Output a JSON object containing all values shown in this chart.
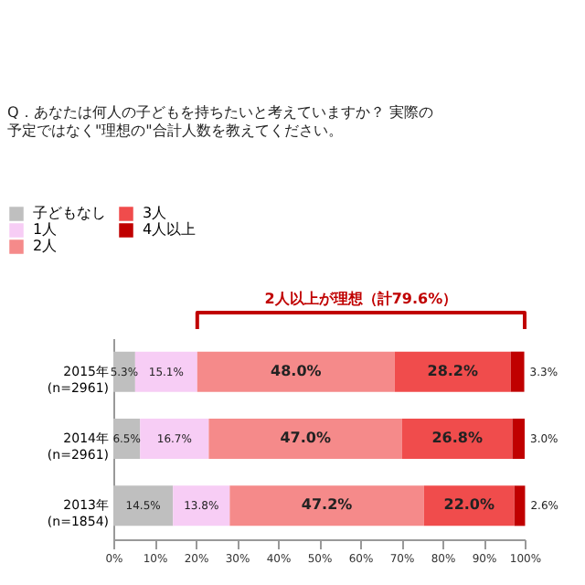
{
  "chart_data": {
    "type": "bar",
    "orientation": "horizontal",
    "stacked": true,
    "title": "Q．あなたは何人の子どもを持ちたいと考えていますか？ 実際の予定ではなく\"理想の\"合計人数を教えてください。",
    "categories": [
      "2015年\n(n=2961)",
      "2014年\n(n=2961)",
      "2013年\n(n=1854)"
    ],
    "series": [
      {
        "name": "子どもなし",
        "color": "#bfbfbf",
        "values": [
          5.3,
          6.5,
          14.5
        ],
        "value_labels": [
          "5.3%",
          "6.5%",
          "14.5%"
        ]
      },
      {
        "name": "1人",
        "color": "#f7cdf5",
        "values": [
          15.1,
          16.7,
          13.8
        ],
        "value_labels": [
          "15.1%",
          "16.7%",
          "13.8%"
        ]
      },
      {
        "name": "2人",
        "color": "#f58a8a",
        "values": [
          48.0,
          47.0,
          47.2
        ],
        "value_labels": [
          "48.0%",
          "47.0%",
          "47.2%"
        ]
      },
      {
        "name": "3人",
        "color": "#f04c4c",
        "values": [
          28.2,
          26.8,
          22.0
        ],
        "value_labels": [
          "28.2%",
          "26.8%",
          "22.0%"
        ]
      },
      {
        "name": "4人以上",
        "color": "#c00000",
        "values": [
          3.3,
          3.0,
          2.6
        ],
        "value_labels": [
          "3.3%",
          "3.0%",
          "2.6%"
        ]
      }
    ],
    "xlim": [
      0,
      100
    ],
    "xticks": [
      {
        "value": 0,
        "label": "0%"
      },
      {
        "value": 10,
        "label": "10%"
      },
      {
        "value": 20,
        "label": "20%"
      },
      {
        "value": 30,
        "label": "30%"
      },
      {
        "value": 40,
        "label": "40%"
      },
      {
        "value": 50,
        "label": "50%"
      },
      {
        "value": 60,
        "label": "60%"
      },
      {
        "value": 70,
        "label": "70%"
      },
      {
        "value": 80,
        "label": "80%"
      },
      {
        "value": 90,
        "label": "90%"
      },
      {
        "value": 100,
        "label": "100%"
      }
    ],
    "annotations": [
      "2人以上が理想（計79.6%）"
    ],
    "grid": false,
    "legend": "top left"
  }
}
